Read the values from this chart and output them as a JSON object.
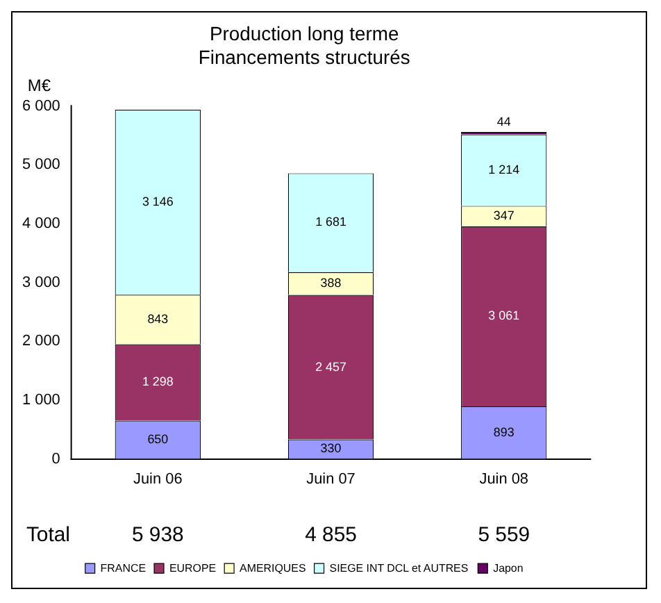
{
  "chart_data": {
    "type": "bar",
    "stacked": true,
    "title": "Production long terme\nFinancements structurés",
    "ylabel": "M€",
    "categories": [
      "Juin 06",
      "Juin 07",
      "Juin 08"
    ],
    "series": [
      {
        "name": "FRANCE",
        "color": "#9999ff",
        "values": [
          650,
          330,
          893
        ],
        "value_labels": [
          "650",
          "330",
          "893"
        ]
      },
      {
        "name": "EUROPE",
        "color": "#993366",
        "values": [
          1298,
          2457,
          3061
        ],
        "value_labels": [
          "1 298",
          "2 457",
          "3 061"
        ]
      },
      {
        "name": "AMERIQUES",
        "color": "#ffffcc",
        "values": [
          843,
          388,
          347
        ],
        "value_labels": [
          "843",
          "388",
          "347"
        ]
      },
      {
        "name": "SIEGE INT DCL et AUTRES",
        "color": "#ccffff",
        "values": [
          3146,
          1681,
          1214
        ],
        "value_labels": [
          "3 146",
          "1 681",
          "1 214"
        ]
      },
      {
        "name": "Japon",
        "color": "#660066",
        "values": [
          null,
          null,
          44
        ],
        "value_labels": [
          null,
          null,
          "44"
        ]
      }
    ],
    "ylim": [
      0,
      6000
    ],
    "yticks": [
      {
        "value": 0,
        "label": "0"
      },
      {
        "value": 1000,
        "label": "1 000"
      },
      {
        "value": 2000,
        "label": "2 000"
      },
      {
        "value": 3000,
        "label": "3 000"
      },
      {
        "value": 4000,
        "label": "4 000"
      },
      {
        "value": 5000,
        "label": "5 000"
      },
      {
        "value": 6000,
        "label": "6 000"
      }
    ],
    "totals": [
      "5 938",
      "4 855",
      "5 559"
    ],
    "annotations": [
      "Total"
    ],
    "grid": false,
    "legend": "bottom"
  }
}
